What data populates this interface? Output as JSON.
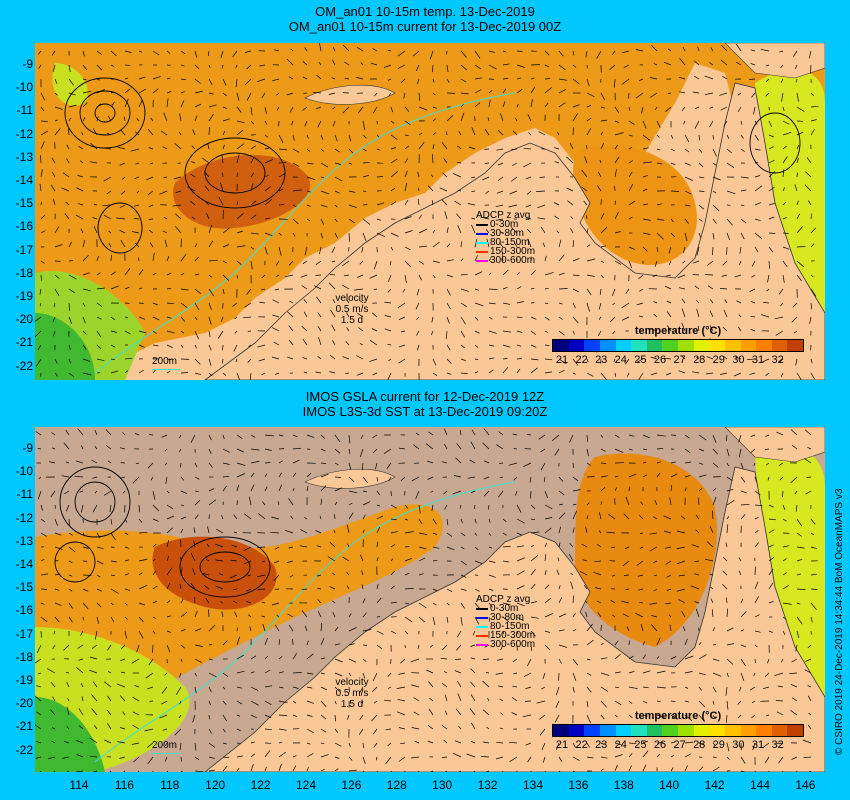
{
  "top_panel": {
    "title_line1": "OM_an01 10-15m temp. 13-Dec-2019",
    "title_line2": "OM_an01 10-15m current for 13-Dec-2019 00Z"
  },
  "bottom_panel": {
    "title_line1": "IMOS GSLA current for 12-Dec-2019 12Z",
    "title_line2": "IMOS L3S-3d SST at 13-Dec-2019 09:20Z"
  },
  "lat_ticks": [
    "-9",
    "-10",
    "-11",
    "-12",
    "-13",
    "-14",
    "-15",
    "-16",
    "-17",
    "-18",
    "-19",
    "-20",
    "-21",
    "-22"
  ],
  "lon_ticks": [
    "114",
    "116",
    "118",
    "120",
    "122",
    "124",
    "126",
    "128",
    "130",
    "132",
    "134",
    "136",
    "138",
    "140",
    "142",
    "144",
    "146"
  ],
  "adcp_legend": {
    "title": "ADCP z avg",
    "entries": [
      {
        "label": "0-30m",
        "color": "#000000"
      },
      {
        "label": "30-80m",
        "color": "#0000ff"
      },
      {
        "label": "80-150m",
        "color": "#00ffff"
      },
      {
        "label": "150-300m",
        "color": "#ff3000"
      },
      {
        "label": "300-600m",
        "color": "#ff00ff"
      }
    ]
  },
  "velocity_legend": {
    "title": "velocity",
    "speed": "0.5 m/s",
    "time": "1.5 d"
  },
  "isobath_label": "200m",
  "colorbar": {
    "title": "temperature (°C)",
    "labels": [
      "21",
      "22",
      "23",
      "24",
      "25",
      "26",
      "27",
      "28",
      "29",
      "30",
      "31",
      "32"
    ],
    "colors": [
      "#00007f",
      "#0000c0",
      "#0040ff",
      "#0090ff",
      "#00d0ff",
      "#20e0c0",
      "#20c060",
      "#50d020",
      "#a0e000",
      "#e0f000",
      "#ffe000",
      "#ffc000",
      "#ffa000",
      "#ff8000",
      "#e06000",
      "#c04000"
    ]
  },
  "credit": "© CSIRO 2019  24-Dec-2019 14:34:44 BoM OceanMAPS v3",
  "colors": {
    "background": "#00c8ff",
    "land": "#f9c896",
    "no_data": "#c8a890",
    "warm": "#e88a10",
    "hot": "#c8500a",
    "cool": "#80d020",
    "coldest": "#30b030"
  }
}
